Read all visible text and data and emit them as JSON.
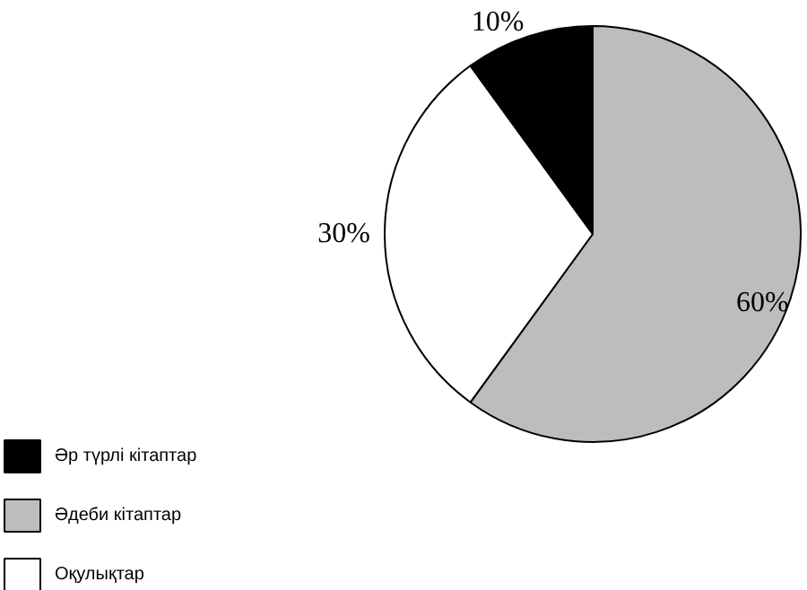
{
  "chart_data": {
    "type": "pie",
    "categories": [
      "Әдеби кітаптар",
      "Оқулықтар",
      "Әр түрлі кітаптар"
    ],
    "values": [
      60,
      30,
      10
    ],
    "colors": [
      "#bdbdbd",
      "#ffffff",
      "#000000"
    ],
    "value_labels": [
      "60%",
      "30%",
      "10%"
    ],
    "legend": "bottom left"
  }
}
